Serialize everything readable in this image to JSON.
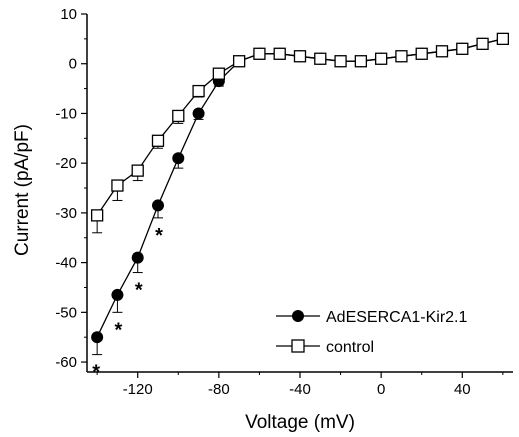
{
  "chart_data": {
    "type": "line",
    "xlabel": "Voltage (mV)",
    "ylabel": "Current (pA/pF)",
    "xlim": [
      -145,
      65
    ],
    "ylim": [
      -62,
      10
    ],
    "x_ticks": [
      -120,
      -80,
      -40,
      0,
      40
    ],
    "x_tick_labels": [
      "-120",
      "-80",
      "-40",
      "0",
      "40"
    ],
    "y_ticks": [
      10,
      0,
      -10,
      -20,
      -30,
      -40,
      -50,
      -60
    ],
    "y_tick_labels": [
      "10",
      "0",
      "-10",
      "-20",
      "-30",
      "-40",
      "-50",
      "-60"
    ],
    "legend_position": "bottom-right",
    "significance_marker": "*",
    "x": [
      -140,
      -130,
      -120,
      -110,
      -100,
      -90,
      -80,
      -70,
      -60,
      -50,
      -40,
      -30,
      -20,
      -10,
      0,
      10,
      20,
      30,
      40,
      50,
      60
    ],
    "series": [
      {
        "name": "AdESERCA1-Kir2.1",
        "marker": "filled-circle",
        "values": [
          -55,
          -46.5,
          -39,
          -28.5,
          -19,
          -10,
          -3.5,
          0.5,
          2,
          2,
          1.5,
          1,
          0.5,
          0.5,
          1,
          1.5,
          2,
          2.5,
          3,
          4,
          5
        ],
        "error": [
          3.5,
          3.5,
          3,
          2.5,
          2,
          1.2,
          1,
          0.6,
          0.8,
          0.8,
          0.6,
          0.5,
          0.5,
          0.5,
          0.5,
          0.5,
          0.5,
          0.5,
          0.6,
          0.7,
          0.8
        ],
        "significant": [
          true,
          true,
          true,
          true,
          false,
          false,
          false,
          false,
          false,
          false,
          false,
          false,
          false,
          false,
          false,
          false,
          false,
          false,
          false,
          false,
          false
        ]
      },
      {
        "name": "control",
        "marker": "open-square",
        "values": [
          -30.5,
          -24.5,
          -21.5,
          -15.5,
          -10.5,
          -5.5,
          -2,
          0.5,
          2,
          2,
          1.5,
          1,
          0.5,
          0.5,
          1,
          1.5,
          2,
          2.5,
          3,
          4,
          5
        ],
        "error": [
          3.5,
          3,
          2,
          1.5,
          1.5,
          1.2,
          1,
          0.6,
          0.8,
          0.8,
          0.6,
          0.5,
          0.5,
          0.5,
          0.5,
          0.5,
          0.5,
          0.5,
          0.6,
          0.7,
          0.8
        ]
      }
    ],
    "colors": {
      "line": "#000000",
      "marker_fill": "#000000",
      "open_marker_fill": "#ffffff"
    }
  }
}
